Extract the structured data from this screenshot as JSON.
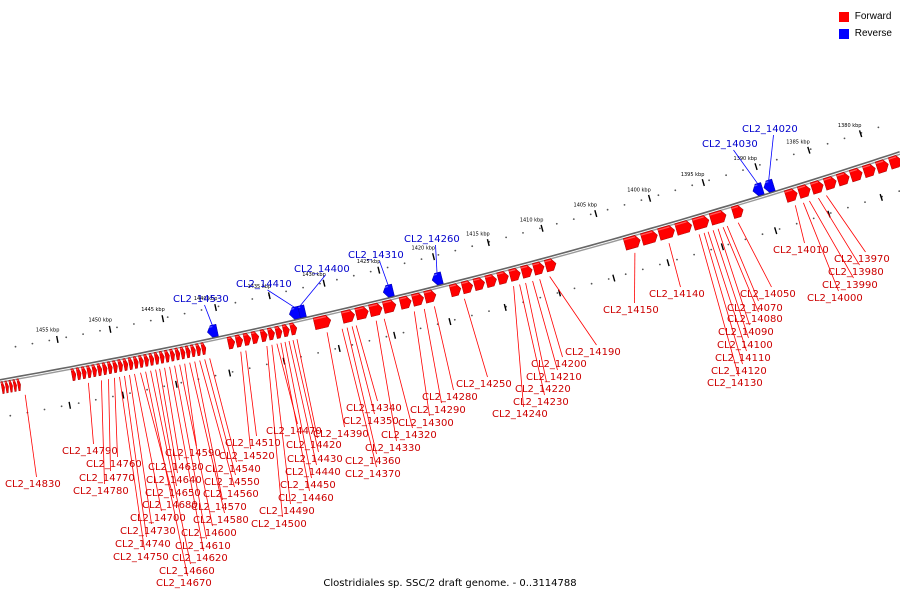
{
  "legend": {
    "forward_label": "Forward",
    "forward_color": "#ff0000",
    "reverse_label": "Reverse",
    "reverse_color": "#0000ff"
  },
  "footer": "Clostridiales sp. SSC/2 draft genome. - 0..3114788",
  "scale_ticks": [
    "1380 kbp",
    "1385 kbp",
    "1390 kbp",
    "1395 kbp",
    "1400 kbp",
    "1405 kbp",
    "1410 kbp",
    "1415 kbp",
    "1420 kbp",
    "1425 kbp",
    "1430 kbp",
    "1435 kbp",
    "1440 kbp",
    "1445 kbp",
    "1450 kbp",
    "1455 kbp"
  ],
  "reverse_genes": [
    "CL2_14020",
    "CL2_14030",
    "CL2_14260",
    "CL2_14310",
    "CL2_14400",
    "CL2_14410",
    "CL2_14530"
  ],
  "forward_genes": [
    "CL2_13970",
    "CL2_13980",
    "CL2_13990",
    "CL2_14000",
    "CL2_14010",
    "CL2_14050",
    "CL2_14070",
    "CL2_14080",
    "CL2_14090",
    "CL2_14100",
    "CL2_14110",
    "CL2_14120",
    "CL2_14130",
    "CL2_14140",
    "CL2_14150",
    "CL2_14190",
    "CL2_14200",
    "CL2_14210",
    "CL2_14220",
    "CL2_14230",
    "CL2_14240",
    "CL2_14250",
    "CL2_14280",
    "CL2_14290",
    "CL2_14300",
    "CL2_14320",
    "CL2_14330",
    "CL2_14340",
    "CL2_14350",
    "CL2_14360",
    "CL2_14370",
    "CL2_14390",
    "CL2_14420",
    "CL2_14430",
    "CL2_14440",
    "CL2_14450",
    "CL2_14460",
    "CL2_14470",
    "CL2_14490",
    "CL2_14500",
    "CL2_14510",
    "CL2_14520",
    "CL2_14540",
    "CL2_14550",
    "CL2_14560",
    "CL2_14570",
    "CL2_14580",
    "CL2_14590",
    "CL2_14600",
    "CL2_14610",
    "CL2_14620",
    "CL2_14630",
    "CL2_14640",
    "CL2_14650",
    "CL2_14660",
    "CL2_14670",
    "CL2_14680",
    "CL2_14700",
    "CL2_14730",
    "CL2_14740",
    "CL2_14750",
    "CL2_14760",
    "CL2_14770",
    "CL2_14780",
    "CL2_14790",
    "CL2_14830"
  ]
}
